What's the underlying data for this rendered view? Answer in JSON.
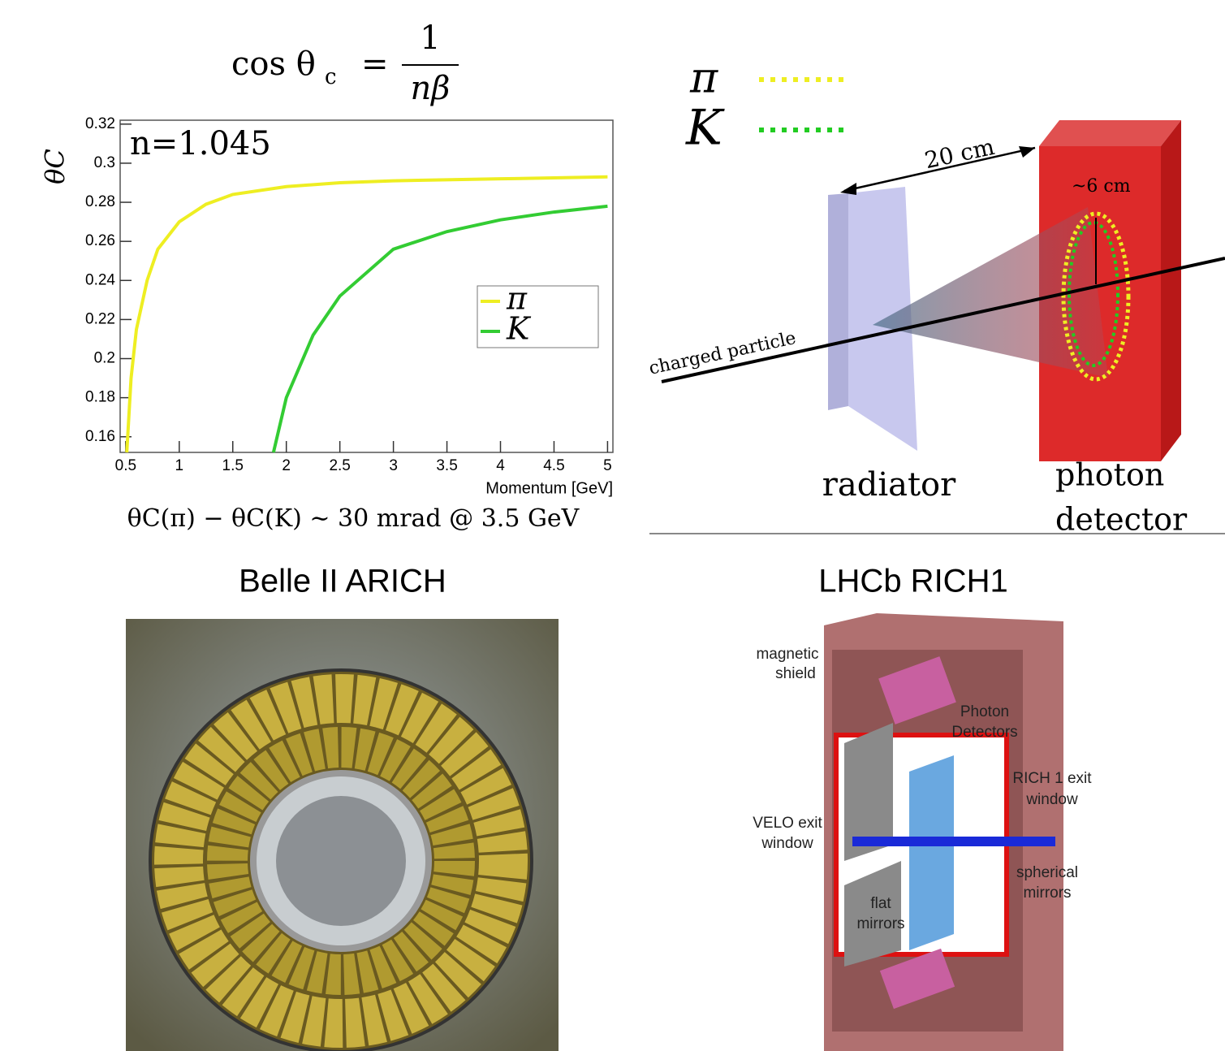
{
  "formula": {
    "lhs": "cos θ",
    "lhs_sub": "c",
    "equals": "=",
    "numerator": "1",
    "denominator": "nβ"
  },
  "chart_data": {
    "type": "line",
    "annotation": "n=1.045",
    "y_label": "θC",
    "x_label": "Momentum [GeV]",
    "xlim": [
      0.448,
      5.05
    ],
    "ylim": [
      0.152,
      0.322
    ],
    "xticks": [
      0.5,
      1,
      1.5,
      2,
      2.5,
      3,
      3.5,
      4,
      4.5,
      5
    ],
    "yticks": [
      0.16,
      0.18,
      0.2,
      0.22,
      0.24,
      0.26,
      0.28,
      0.3,
      0.32
    ],
    "legend": "center-right",
    "series": [
      {
        "name": "π",
        "color": "#eeee22",
        "x": [
          0.51,
          0.55,
          0.6,
          0.7,
          0.8,
          1,
          1.25,
          1.5,
          2,
          2.5,
          3,
          4,
          5
        ],
        "values": [
          0.152,
          0.19,
          0.215,
          0.24,
          0.256,
          0.27,
          0.279,
          0.284,
          0.288,
          0.29,
          0.291,
          0.292,
          0.293
        ]
      },
      {
        "name": "K",
        "color": "#33cc33",
        "x": [
          1.88,
          2,
          2.25,
          2.5,
          3,
          3.5,
          4,
          4.5,
          5
        ],
        "values": [
          0.152,
          0.18,
          0.212,
          0.232,
          0.256,
          0.265,
          0.271,
          0.275,
          0.278
        ]
      }
    ]
  },
  "difference_note": "θC(π) − θC(K) ∼ 30 mrad @ 3.5 GeV",
  "diagram": {
    "pi": "π",
    "k": "K",
    "distance": "20 cm",
    "ring_size": "~6 cm",
    "particle": "charged particle",
    "radiator": "radiator",
    "detector_line1": "photon",
    "detector_line2": "detector"
  },
  "belle": {
    "title": "Belle II ARICH"
  },
  "lhcb": {
    "title": "LHCb RICH1",
    "labels": [
      "magnetic",
      "shield",
      "Photon",
      "Detectors",
      "RICH 1 exit",
      "window",
      "VELO exit",
      "window",
      "spherical",
      "mirrors",
      "flat",
      "mirrors"
    ]
  }
}
